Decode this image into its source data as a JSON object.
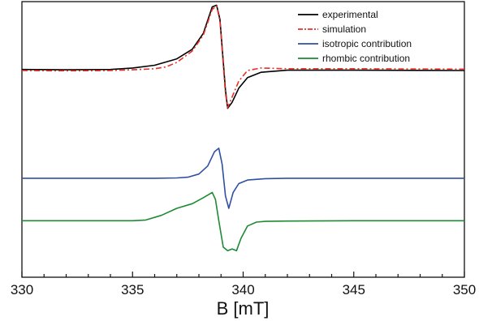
{
  "chart_data": {
    "type": "line",
    "title": "",
    "xlabel": "B [mT]",
    "ylabel": "",
    "xlim": [
      330,
      350
    ],
    "x_ticks": [
      330,
      335,
      340,
      345,
      350
    ],
    "x_tick_labels": [
      "330",
      "335",
      "340",
      "345",
      "350"
    ],
    "y_ticks_visible": false,
    "grid": false,
    "legend_position": "top-right",
    "series": [
      {
        "name": "experimental",
        "color": "#000000",
        "style": "solid",
        "offset": 3.1,
        "points": [
          [
            330,
            -0.02
          ],
          [
            332,
            -0.03
          ],
          [
            334,
            -0.02
          ],
          [
            335,
            0.02
          ],
          [
            336,
            0.1
          ],
          [
            337,
            0.28
          ],
          [
            337.7,
            0.55
          ],
          [
            338.2,
            1.0
          ],
          [
            338.6,
            1.75
          ],
          [
            338.8,
            1.8
          ],
          [
            338.95,
            1.4
          ],
          [
            339.1,
            0.2
          ],
          [
            339.2,
            -0.6
          ],
          [
            339.3,
            -1.12
          ],
          [
            339.5,
            -0.95
          ],
          [
            339.8,
            -0.55
          ],
          [
            340.2,
            -0.25
          ],
          [
            340.8,
            -0.1
          ],
          [
            342,
            -0.04
          ],
          [
            345,
            -0.04
          ],
          [
            350,
            -0.05
          ]
        ]
      },
      {
        "name": "simulation",
        "color": "#e8302a",
        "style": "dashdot",
        "offset": 3.1,
        "points": [
          [
            330,
            -0.05
          ],
          [
            332,
            -0.06
          ],
          [
            334,
            -0.05
          ],
          [
            335,
            -0.03
          ],
          [
            336,
            0.0
          ],
          [
            336.5,
            0.05
          ],
          [
            337,
            0.18
          ],
          [
            337.7,
            0.5
          ],
          [
            338.2,
            0.95
          ],
          [
            338.6,
            1.68
          ],
          [
            338.8,
            1.78
          ],
          [
            338.95,
            1.35
          ],
          [
            339.1,
            0.1
          ],
          [
            339.2,
            -0.7
          ],
          [
            339.3,
            -1.1
          ],
          [
            339.5,
            -0.8
          ],
          [
            339.8,
            -0.35
          ],
          [
            340.2,
            -0.05
          ],
          [
            340.8,
            0.02
          ],
          [
            342,
            0.0
          ],
          [
            345,
            0.0
          ],
          [
            350,
            -0.01
          ]
        ]
      },
      {
        "name": "isotropic contribution",
        "color": "#2f4fa3",
        "style": "solid",
        "offset": 0.0,
        "points": [
          [
            330,
            0
          ],
          [
            336,
            0
          ],
          [
            337,
            0.01
          ],
          [
            337.5,
            0.03
          ],
          [
            338,
            0.12
          ],
          [
            338.4,
            0.35
          ],
          [
            338.7,
            0.75
          ],
          [
            338.9,
            0.85
          ],
          [
            339.05,
            0.4
          ],
          [
            339.2,
            -0.5
          ],
          [
            339.35,
            -0.85
          ],
          [
            339.55,
            -0.4
          ],
          [
            339.8,
            -0.15
          ],
          [
            340.2,
            -0.05
          ],
          [
            341,
            -0.01
          ],
          [
            342,
            0
          ],
          [
            350,
            0
          ]
        ]
      },
      {
        "name": "rhombic contribution",
        "color": "#1e8a33",
        "style": "solid",
        "offset": -1.2,
        "points": [
          [
            330,
            0
          ],
          [
            335,
            0
          ],
          [
            335.6,
            0.02
          ],
          [
            336.3,
            0.15
          ],
          [
            337,
            0.35
          ],
          [
            337.7,
            0.48
          ],
          [
            338.2,
            0.65
          ],
          [
            338.6,
            0.8
          ],
          [
            338.75,
            0.6
          ],
          [
            338.9,
            0.0
          ],
          [
            339.1,
            -0.75
          ],
          [
            339.3,
            -0.85
          ],
          [
            339.5,
            -0.8
          ],
          [
            339.7,
            -0.85
          ],
          [
            339.9,
            -0.5
          ],
          [
            340.2,
            -0.15
          ],
          [
            340.6,
            -0.04
          ],
          [
            341,
            -0.02
          ],
          [
            342,
            -0.01
          ],
          [
            345,
            0
          ],
          [
            350,
            0
          ]
        ]
      }
    ]
  }
}
